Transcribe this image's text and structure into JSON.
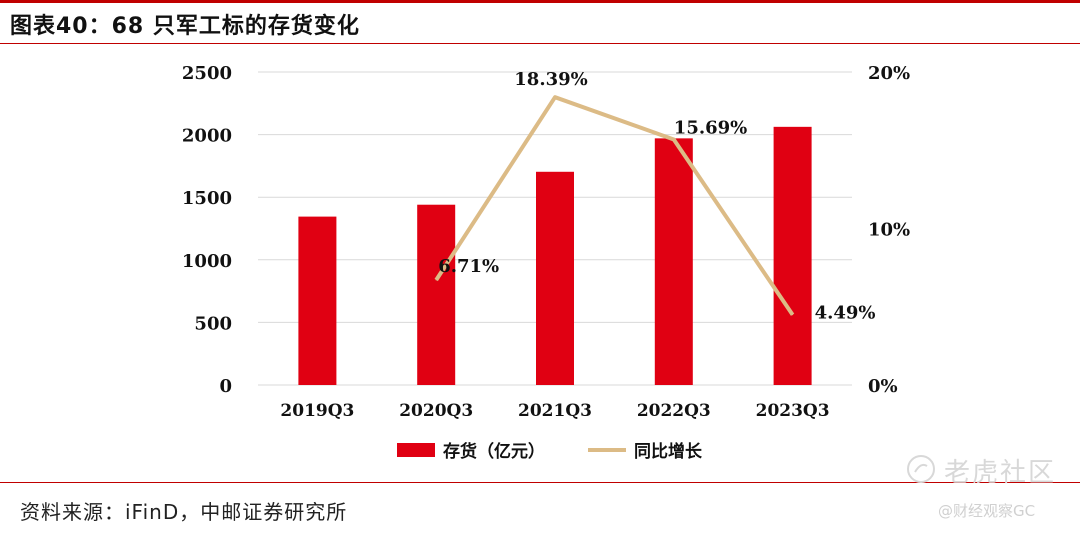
{
  "header": {
    "title": "图表40：68 只军工标的存货变化"
  },
  "footer": {
    "source": "资料来源：iFinD，中邮证券研究所"
  },
  "watermark": {
    "brand": "老虎社区",
    "handle": "@财经观察GC"
  },
  "colors": {
    "accent": "#c00000",
    "bar": "#e00012",
    "line": "#dcbb86"
  },
  "chart_data": {
    "type": "bar",
    "categories": [
      "2019Q3",
      "2020Q3",
      "2021Q3",
      "2022Q3",
      "2023Q3"
    ],
    "series": [
      {
        "name": "存货（亿元）",
        "kind": "bar",
        "axis": "left",
        "values": [
          1345,
          1440,
          1703,
          1970,
          2062
        ]
      },
      {
        "name": "同比增长",
        "kind": "line",
        "axis": "right",
        "values": [
          null,
          6.71,
          18.39,
          15.69,
          4.49
        ]
      }
    ],
    "data_labels": [
      "6.71%",
      "18.39%",
      "15.69%",
      "4.49%"
    ],
    "y_left": {
      "min": 0,
      "max": 2500,
      "ticks": [
        "0",
        "500",
        "1000",
        "1500",
        "2000",
        "2500"
      ]
    },
    "y_right": {
      "min": 0,
      "max": 20,
      "ticks": [
        "0%",
        "10%",
        "20%"
      ]
    },
    "legend": {
      "position": "bottom",
      "items": [
        "存货（亿元）",
        "同比增长"
      ]
    },
    "grid": true
  }
}
